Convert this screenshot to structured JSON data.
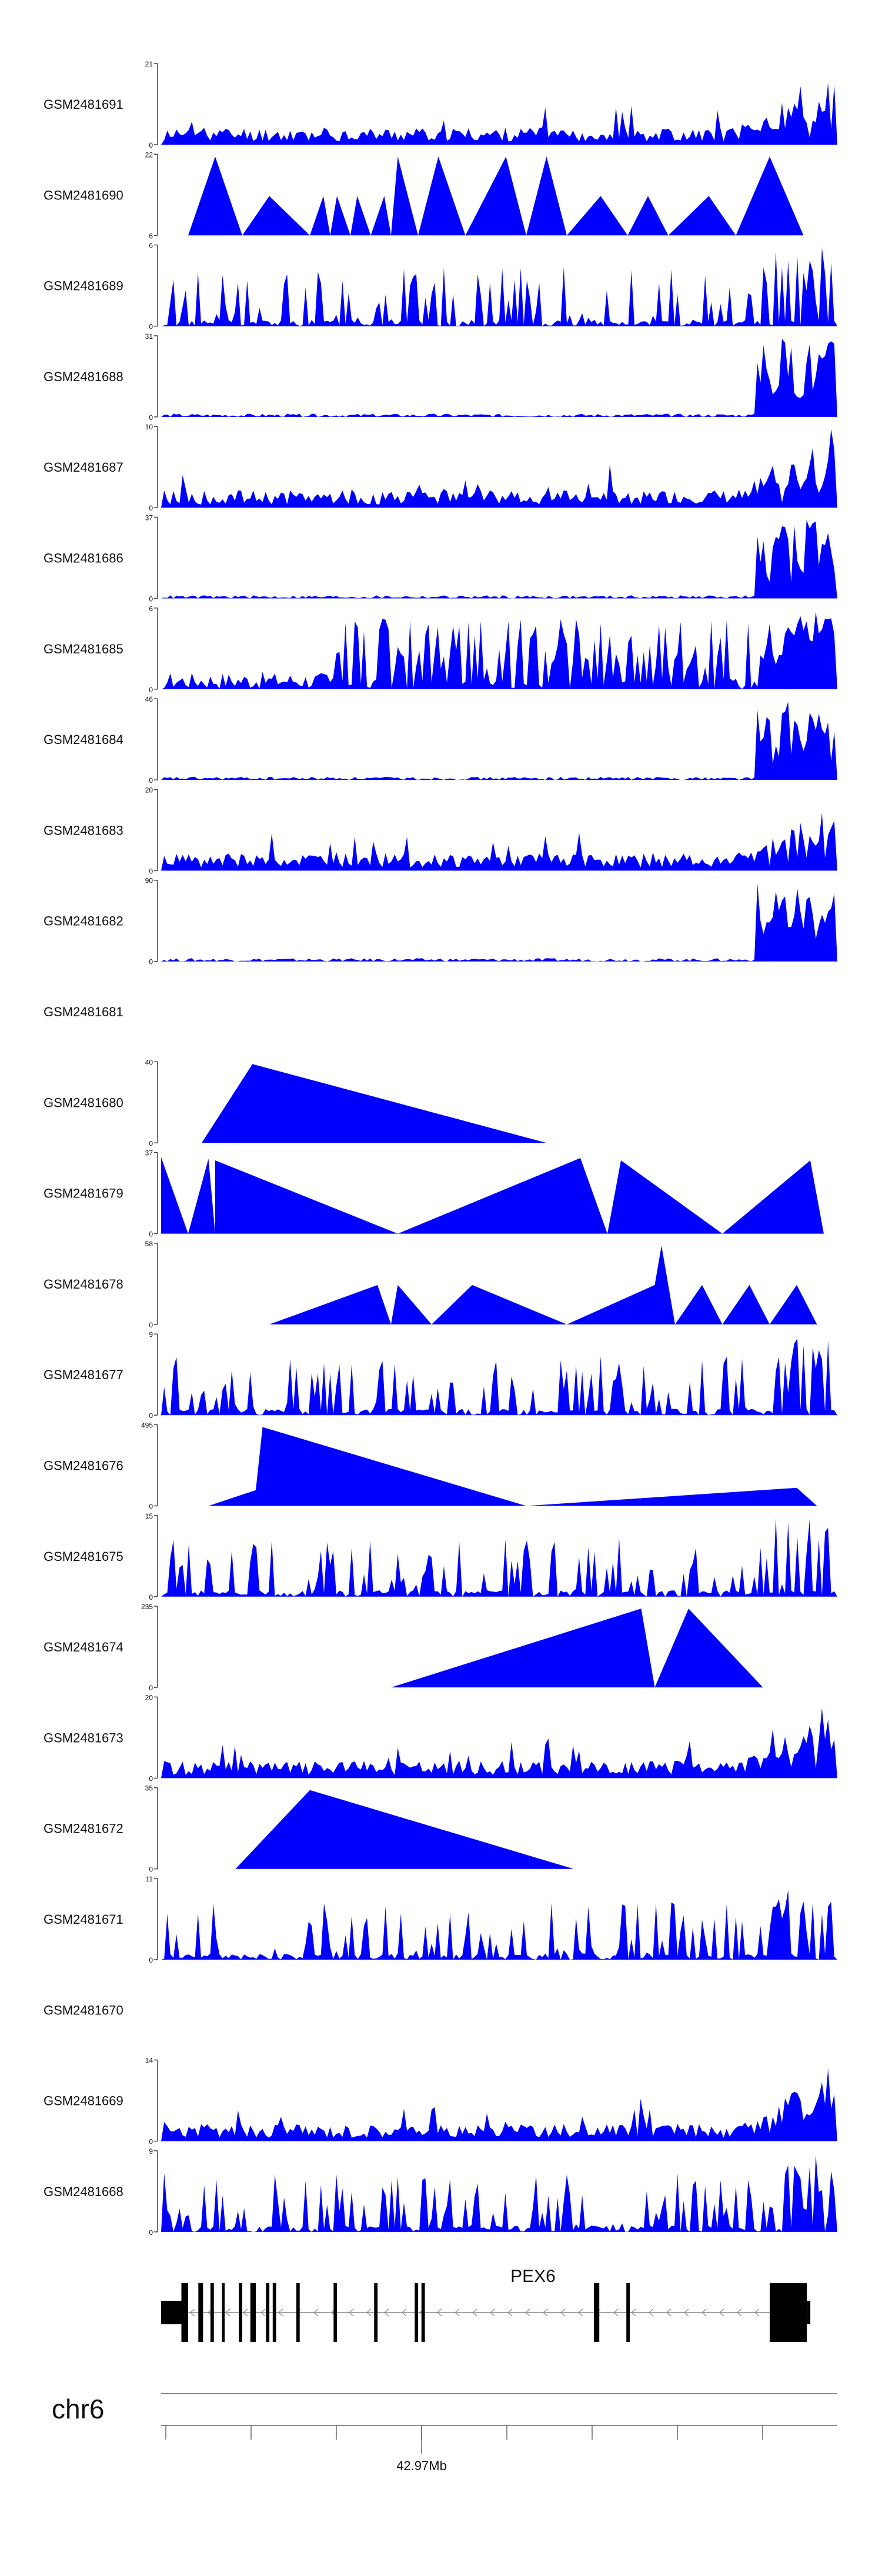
{
  "chart_data": {
    "type": "area",
    "title": "",
    "fill_color": "#0000ff",
    "tracks": [
      {
        "name": "GSM2481691",
        "ymax": "21",
        "yzero": "0",
        "profile": "noisy-right",
        "seed": 11,
        "has_data": true
      },
      {
        "name": "GSM2481690",
        "ymax": "22",
        "yzero": "6",
        "profile": "sparse",
        "seed": 12,
        "has_data": true
      },
      {
        "name": "GSM2481689",
        "ymax": "6",
        "yzero": "0",
        "profile": "spiky",
        "seed": 13,
        "has_data": true
      },
      {
        "name": "GSM2481688",
        "ymax": "31",
        "yzero": "0",
        "profile": "flat-right",
        "seed": 14,
        "has_data": true
      },
      {
        "name": "GSM2481687",
        "ymax": "10",
        "yzero": "0",
        "profile": "noisy-right",
        "seed": 15,
        "has_data": true
      },
      {
        "name": "GSM2481686",
        "ymax": "37",
        "yzero": "0",
        "profile": "flat-right",
        "seed": 16,
        "has_data": true
      },
      {
        "name": "GSM2481685",
        "ymax": "6",
        "yzero": "0",
        "profile": "dense",
        "seed": 17,
        "has_data": true
      },
      {
        "name": "GSM2481684",
        "ymax": "46",
        "yzero": "0",
        "profile": "flat-right",
        "seed": 18,
        "has_data": true
      },
      {
        "name": "GSM2481683",
        "ymax": "20",
        "yzero": "0",
        "profile": "noisy-right",
        "seed": 19,
        "has_data": true
      },
      {
        "name": "GSM2481682",
        "ymax": "90",
        "yzero": "0",
        "profile": "flat-right",
        "seed": 20,
        "has_data": true
      },
      {
        "name": "GSM2481681",
        "ymax": "",
        "yzero": "",
        "profile": "empty",
        "seed": 21,
        "has_data": false
      },
      {
        "name": "GSM2481680",
        "ymax": "40",
        "yzero": "0",
        "profile": "tri",
        "seed": 22,
        "has_data": true
      },
      {
        "name": "GSM2481679",
        "ymax": "37",
        "yzero": "0",
        "profile": "tri",
        "seed": 23,
        "has_data": true
      },
      {
        "name": "GSM2481678",
        "ymax": "58",
        "yzero": "0",
        "profile": "tri",
        "seed": 24,
        "has_data": true
      },
      {
        "name": "GSM2481677",
        "ymax": "9",
        "yzero": "0",
        "profile": "spiky",
        "seed": 25,
        "has_data": true
      },
      {
        "name": "GSM2481676",
        "ymax": "495",
        "yzero": "0",
        "profile": "tri",
        "seed": 26,
        "has_data": true
      },
      {
        "name": "GSM2481675",
        "ymax": "15",
        "yzero": "0",
        "profile": "spiky",
        "seed": 27,
        "has_data": true
      },
      {
        "name": "GSM2481674",
        "ymax": "235",
        "yzero": "0",
        "profile": "tri",
        "seed": 28,
        "has_data": true
      },
      {
        "name": "GSM2481673",
        "ymax": "20",
        "yzero": "0",
        "profile": "noisy-right",
        "seed": 29,
        "has_data": true
      },
      {
        "name": "GSM2481672",
        "ymax": "35",
        "yzero": "0",
        "profile": "tri",
        "seed": 30,
        "has_data": true
      },
      {
        "name": "GSM2481671",
        "ymax": "11",
        "yzero": "0",
        "profile": "spiky",
        "seed": 31,
        "has_data": true
      },
      {
        "name": "GSM2481670",
        "ymax": "",
        "yzero": "",
        "profile": "empty",
        "seed": 32,
        "has_data": false
      },
      {
        "name": "GSM2481669",
        "ymax": "14",
        "yzero": "0",
        "profile": "noisy-right",
        "seed": 33,
        "has_data": true
      },
      {
        "name": "GSM2481668",
        "ymax": "9",
        "yzero": "0",
        "profile": "spiky",
        "seed": 34,
        "has_data": true
      }
    ],
    "triangles": {
      "GSM2481680": [
        [
          0.06,
          0.0
        ],
        [
          0.135,
          1.0
        ],
        [
          0.57,
          0.0
        ]
      ],
      "GSM2481679": [
        [
          0.0,
          0.0
        ],
        [
          0.0,
          0.97
        ],
        [
          0.04,
          0.0
        ],
        [
          0.07,
          0.95
        ],
        [
          0.08,
          0.0
        ],
        [
          0.08,
          0.93
        ],
        [
          0.35,
          0.0
        ],
        [
          0.62,
          0.96
        ],
        [
          0.66,
          0.0
        ],
        [
          0.68,
          0.93
        ],
        [
          0.83,
          0.0
        ],
        [
          0.96,
          0.93
        ],
        [
          0.98,
          0.0
        ]
      ],
      "GSM2481678": [
        [
          0.16,
          0.0
        ],
        [
          0.32,
          0.5
        ],
        [
          0.34,
          0.0
        ],
        [
          0.35,
          0.5
        ],
        [
          0.4,
          0.0
        ],
        [
          0.46,
          0.5
        ],
        [
          0.6,
          0.0
        ],
        [
          0.73,
          0.5
        ],
        [
          0.74,
          1.0
        ],
        [
          0.76,
          0.0
        ],
        [
          0.8,
          0.5
        ],
        [
          0.83,
          0.0
        ],
        [
          0.87,
          0.5
        ],
        [
          0.9,
          0.0
        ],
        [
          0.94,
          0.5
        ],
        [
          0.97,
          0.0
        ]
      ],
      "GSM2481676": [
        [
          0.07,
          0.0
        ],
        [
          0.14,
          0.2
        ],
        [
          0.15,
          1.0
        ],
        [
          0.54,
          0.0
        ],
        [
          0.94,
          0.23
        ],
        [
          0.97,
          0.0
        ]
      ],
      "GSM2481674": [
        [
          0.34,
          0.0
        ],
        [
          0.71,
          1.0
        ],
        [
          0.73,
          0.0
        ],
        [
          0.78,
          1.0
        ],
        [
          0.89,
          0.0
        ]
      ],
      "GSM2481672": [
        [
          0.11,
          0.0
        ],
        [
          0.22,
          1.0
        ],
        [
          0.61,
          0.0
        ]
      ],
      "GSM2481690": [
        [
          0.04,
          0.0
        ],
        [
          0.08,
          1.0
        ],
        [
          0.12,
          0.0
        ],
        [
          0.16,
          0.5
        ],
        [
          0.22,
          0.0
        ],
        [
          0.24,
          0.5
        ],
        [
          0.25,
          0.0
        ],
        [
          0.26,
          0.5
        ],
        [
          0.28,
          0.0
        ],
        [
          0.29,
          0.5
        ],
        [
          0.31,
          0.0
        ],
        [
          0.33,
          0.5
        ],
        [
          0.34,
          0.0
        ],
        [
          0.35,
          1.0
        ],
        [
          0.38,
          0.0
        ],
        [
          0.41,
          1.0
        ],
        [
          0.45,
          0.0
        ],
        [
          0.51,
          1.0
        ],
        [
          0.54,
          0.0
        ],
        [
          0.57,
          1.0
        ],
        [
          0.6,
          0.0
        ],
        [
          0.65,
          0.5
        ],
        [
          0.69,
          0.0
        ],
        [
          0.72,
          0.5
        ],
        [
          0.75,
          0.0
        ],
        [
          0.81,
          0.5
        ],
        [
          0.85,
          0.0
        ],
        [
          0.9,
          1.0
        ],
        [
          0.95,
          0.0
        ]
      ]
    },
    "gene": {
      "name": "PEX6",
      "strand": "-",
      "exons": [
        [
          0.0,
          0.03,
          0.4
        ],
        [
          0.03,
          0.04,
          1.0
        ],
        [
          0.055,
          0.062,
          1.0
        ],
        [
          0.073,
          0.078,
          1.0
        ],
        [
          0.09,
          0.094,
          1.0
        ],
        [
          0.115,
          0.12,
          1.0
        ],
        [
          0.132,
          0.14,
          1.0
        ],
        [
          0.155,
          0.16,
          1.0
        ],
        [
          0.165,
          0.17,
          1.0
        ],
        [
          0.2,
          0.205,
          1.0
        ],
        [
          0.255,
          0.26,
          1.0
        ],
        [
          0.315,
          0.32,
          1.0
        ],
        [
          0.375,
          0.38,
          1.0
        ],
        [
          0.385,
          0.39,
          1.0
        ],
        [
          0.64,
          0.648,
          1.0
        ],
        [
          0.688,
          0.693,
          1.0
        ],
        [
          0.9,
          0.955,
          1.0
        ],
        [
          0.955,
          0.96,
          0.4
        ]
      ]
    },
    "axis": {
      "chromosome": "chr6",
      "tick_label": "42.97Mb",
      "tick_label_index": 3,
      "tick_count": 9
    }
  }
}
